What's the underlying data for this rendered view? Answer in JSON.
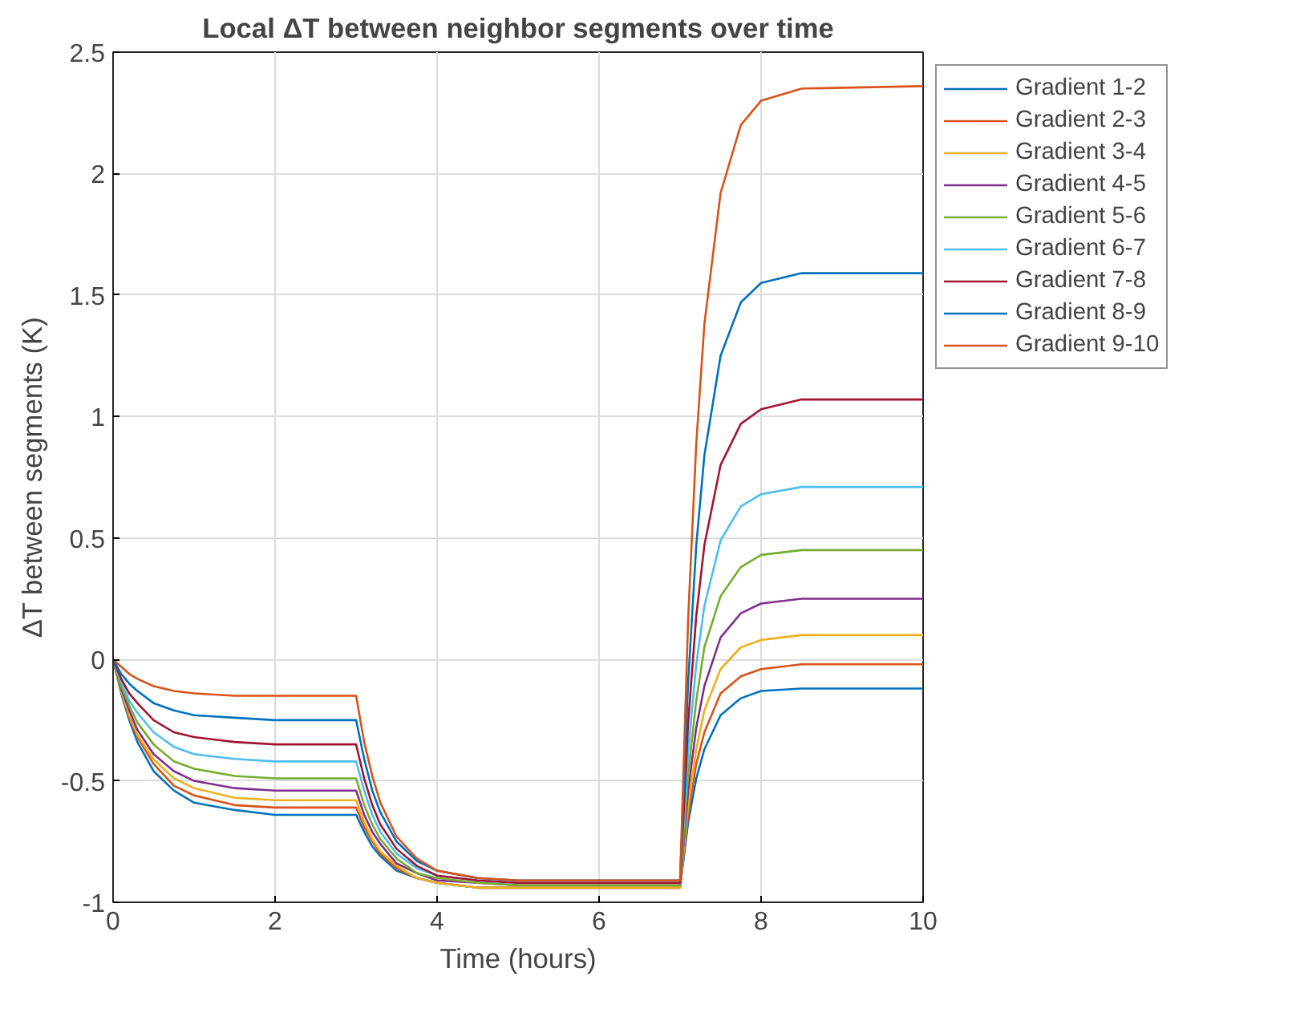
{
  "chart_data": {
    "type": "line",
    "title": "Local ΔT between neighbor segments over time",
    "xlabel": "Time (hours)",
    "ylabel": "ΔT between segments (K)",
    "x": [
      0,
      0.1,
      0.2,
      0.3,
      0.5,
      0.75,
      1,
      1.5,
      2,
      3,
      3.1,
      3.2,
      3.3,
      3.5,
      3.75,
      4,
      4.5,
      5,
      7,
      7.1,
      7.2,
      7.3,
      7.5,
      7.75,
      8,
      8.5,
      10
    ],
    "xlim": [
      0,
      10
    ],
    "ylim": [
      -1,
      2.5
    ],
    "xticks": [
      0,
      2,
      4,
      6,
      8,
      10
    ],
    "yticks": [
      -1,
      -0.5,
      0,
      0.5,
      1,
      1.5,
      2,
      2.5
    ],
    "grid": true,
    "legend": "top right",
    "line_style": "solid",
    "series": [
      {
        "name": "Gradient 1-2",
        "color": "#0072bd",
        "values": [
          0,
          -0.14,
          -0.25,
          -0.34,
          -0.46,
          -0.54,
          -0.59,
          -0.62,
          -0.64,
          -0.64,
          -0.71,
          -0.77,
          -0.81,
          -0.87,
          -0.9,
          -0.92,
          -0.94,
          -0.94,
          -0.94,
          -0.67,
          -0.49,
          -0.37,
          -0.23,
          -0.16,
          -0.13,
          -0.12,
          -0.12
        ]
      },
      {
        "name": "Gradient 2-3",
        "color": "#d95319",
        "values": [
          0,
          -0.13,
          -0.24,
          -0.32,
          -0.43,
          -0.52,
          -0.56,
          -0.6,
          -0.61,
          -0.61,
          -0.69,
          -0.75,
          -0.8,
          -0.86,
          -0.9,
          -0.92,
          -0.94,
          -0.94,
          -0.94,
          -0.64,
          -0.43,
          -0.3,
          -0.14,
          -0.07,
          -0.04,
          -0.02,
          -0.02
        ]
      },
      {
        "name": "Gradient 3-4",
        "color": "#edb120",
        "values": [
          0,
          -0.13,
          -0.23,
          -0.31,
          -0.41,
          -0.49,
          -0.53,
          -0.57,
          -0.58,
          -0.58,
          -0.67,
          -0.74,
          -0.79,
          -0.85,
          -0.9,
          -0.92,
          -0.94,
          -0.94,
          -0.94,
          -0.6,
          -0.37,
          -0.21,
          -0.04,
          0.05,
          0.08,
          0.1,
          0.1
        ]
      },
      {
        "name": "Gradient 4-5",
        "color": "#7e2f8e",
        "values": [
          0,
          -0.12,
          -0.21,
          -0.29,
          -0.39,
          -0.46,
          -0.5,
          -0.53,
          -0.54,
          -0.54,
          -0.64,
          -0.71,
          -0.76,
          -0.84,
          -0.88,
          -0.91,
          -0.92,
          -0.93,
          -0.93,
          -0.54,
          -0.28,
          -0.11,
          0.09,
          0.19,
          0.23,
          0.25,
          0.25
        ]
      },
      {
        "name": "Gradient 5-6",
        "color": "#77ac30",
        "values": [
          0,
          -0.11,
          -0.19,
          -0.26,
          -0.35,
          -0.42,
          -0.45,
          -0.48,
          -0.49,
          -0.49,
          -0.6,
          -0.68,
          -0.74,
          -0.82,
          -0.88,
          -0.9,
          -0.92,
          -0.93,
          -0.93,
          -0.47,
          -0.17,
          0.05,
          0.26,
          0.38,
          0.43,
          0.45,
          0.45
        ]
      },
      {
        "name": "Gradient 6-7",
        "color": "#4dbeee",
        "values": [
          0,
          -0.09,
          -0.17,
          -0.22,
          -0.3,
          -0.36,
          -0.39,
          -0.41,
          -0.42,
          -0.42,
          -0.54,
          -0.64,
          -0.71,
          -0.8,
          -0.86,
          -0.89,
          -0.91,
          -0.92,
          -0.92,
          -0.38,
          -0.02,
          0.22,
          0.49,
          0.63,
          0.68,
          0.71,
          0.71
        ]
      },
      {
        "name": "Gradient 7-8",
        "color": "#a2142f",
        "values": [
          0,
          -0.08,
          -0.14,
          -0.18,
          -0.25,
          -0.3,
          -0.32,
          -0.34,
          -0.35,
          -0.35,
          -0.49,
          -0.6,
          -0.68,
          -0.78,
          -0.85,
          -0.89,
          -0.91,
          -0.92,
          -0.92,
          -0.26,
          0.18,
          0.47,
          0.8,
          0.97,
          1.03,
          1.07,
          1.07
        ]
      },
      {
        "name": "Gradient 8-9",
        "color": "#0072bd",
        "values": [
          0,
          -0.06,
          -0.1,
          -0.13,
          -0.18,
          -0.21,
          -0.23,
          -0.24,
          -0.25,
          -0.25,
          -0.41,
          -0.54,
          -0.63,
          -0.75,
          -0.83,
          -0.87,
          -0.9,
          -0.91,
          -0.91,
          -0.09,
          0.47,
          0.84,
          1.25,
          1.47,
          1.55,
          1.59,
          1.59
        ]
      },
      {
        "name": "Gradient 9-10",
        "color": "#d95319",
        "values": [
          0,
          -0.03,
          -0.06,
          -0.08,
          -0.11,
          -0.13,
          -0.14,
          -0.15,
          -0.15,
          -0.15,
          -0.34,
          -0.48,
          -0.59,
          -0.73,
          -0.82,
          -0.87,
          -0.9,
          -0.91,
          -0.91,
          0.17,
          0.89,
          1.38,
          1.92,
          2.2,
          2.3,
          2.35,
          2.36
        ]
      }
    ]
  }
}
